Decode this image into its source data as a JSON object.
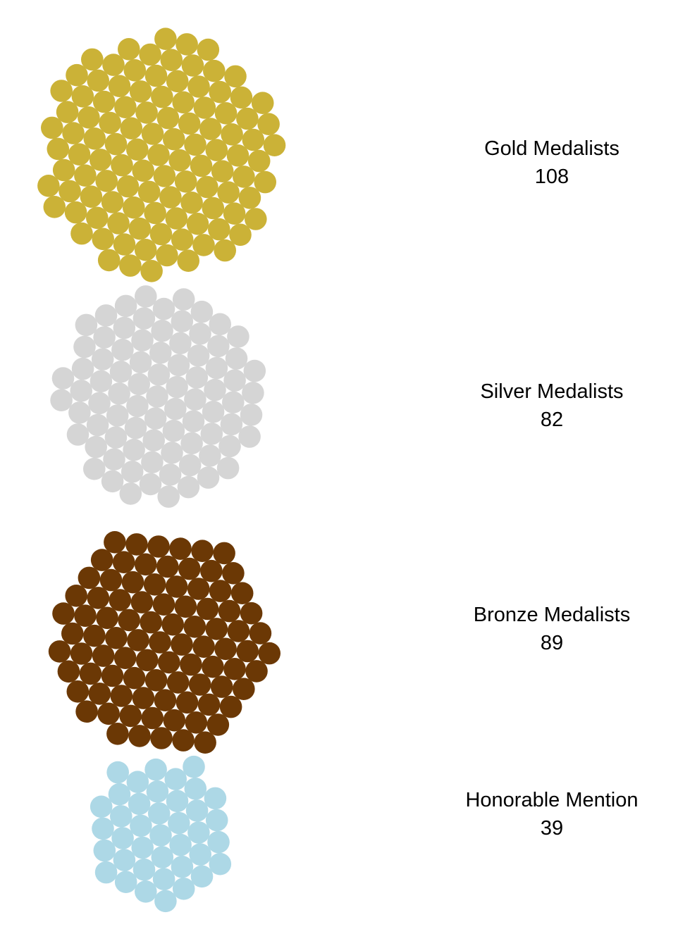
{
  "chart_data": {
    "type": "packed-circles",
    "groups": [
      {
        "name": "Gold Medalists",
        "value": 108,
        "value_label": "108",
        "color": "#CBB237"
      },
      {
        "name": "Silver Medalists",
        "value": 82,
        "value_label": "82",
        "color": "#D5D5D5"
      },
      {
        "name": "Bronze Medalists",
        "value": 89,
        "value_label": "89",
        "color": "#6B3805"
      },
      {
        "name": "Honorable Mention",
        "value": 39,
        "value_label": "39",
        "color": "#ADD8E6"
      }
    ]
  }
}
